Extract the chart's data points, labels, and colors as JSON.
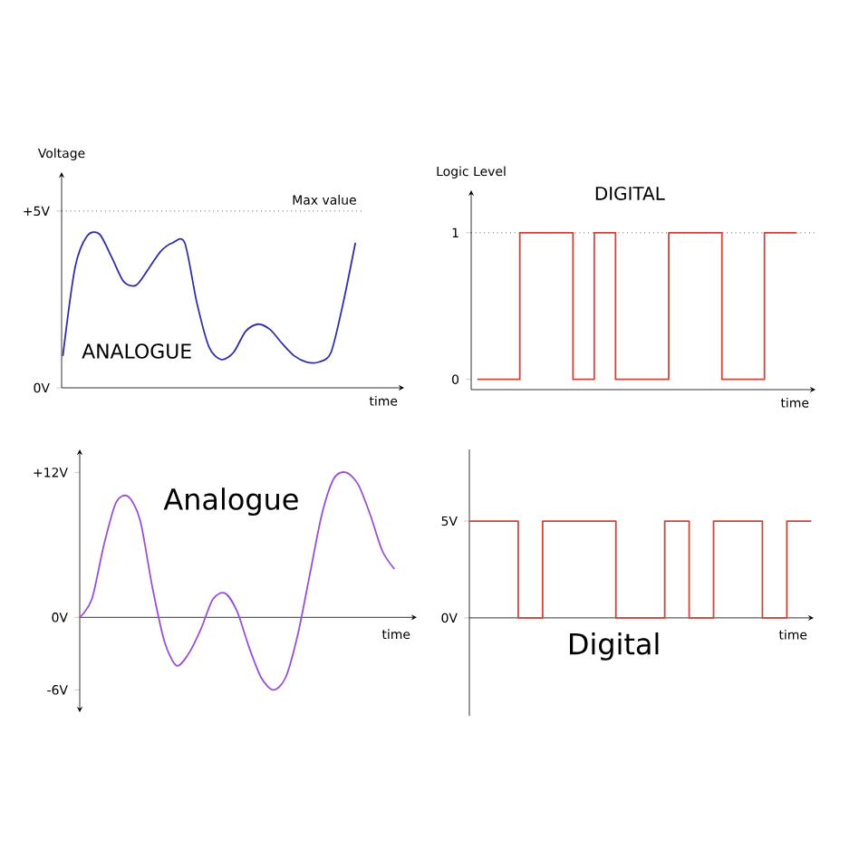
{
  "chart_data": [
    {
      "type": "line",
      "title": "ANALOGUE",
      "xlabel": "time",
      "ylabel": "Voltage",
      "color": "#2f2fa6",
      "tick_labels": "y",
      "categories": [
        null,
        null,
        null,
        null,
        null,
        null,
        null,
        null,
        null,
        null,
        null,
        null,
        null,
        null,
        null,
        null,
        null,
        null,
        null,
        null,
        null,
        null,
        null,
        null,
        null
      ],
      "values": [
        0.9,
        3.4,
        4.3,
        4.35,
        3.7,
        3.0,
        2.9,
        3.35,
        3.85,
        4.1,
        4.1,
        2.4,
        1.15,
        0.8,
        1.0,
        1.6,
        1.8,
        1.65,
        1.25,
        0.9,
        0.73,
        0.73,
        1.0,
        2.4,
        4.1
      ],
      "ylim": [
        0,
        6.1
      ],
      "yticks": [
        {
          "value": 0,
          "label": "0V"
        },
        {
          "value": 5,
          "label": "+5V"
        }
      ],
      "ref_lines": [
        {
          "axis": "y",
          "value": 5,
          "label": "Max value",
          "color": "#000000",
          "line_style": "dotted"
        }
      ]
    },
    {
      "type": "step",
      "title": "DIGITAL",
      "xlabel": "time",
      "ylabel": "Logic Level",
      "color": "#d0443a",
      "tick_labels": "y",
      "categories": [
        null,
        null,
        null,
        null,
        null,
        null,
        null,
        null,
        null,
        null,
        null,
        null,
        null,
        null,
        null,
        null,
        null,
        null,
        null,
        null,
        null,
        null,
        null,
        null,
        null,
        null,
        null,
        null,
        null,
        null,
        null
      ],
      "values": [
        0,
        0,
        0,
        0,
        1,
        1,
        1,
        1,
        1,
        0,
        0,
        1,
        1,
        0,
        0,
        0,
        0,
        0,
        1,
        1,
        1,
        1,
        1,
        0,
        0,
        0,
        0,
        1,
        1,
        1,
        1
      ],
      "ylim": [
        -0.07,
        1.29
      ],
      "yticks": [
        0,
        1
      ],
      "ref_lines": [
        {
          "axis": "y",
          "value": 1,
          "color": "#000000",
          "line_style": "dotted"
        }
      ]
    },
    {
      "type": "line",
      "title": "Analogue",
      "xlabel": "time",
      "color": "#9a4fd6",
      "tick_labels": "y",
      "categories": [
        null,
        null,
        null,
        null,
        null,
        null,
        null,
        null,
        null,
        null,
        null,
        null,
        null,
        null,
        null,
        null,
        null,
        null,
        null,
        null,
        null,
        null,
        null,
        null,
        null,
        null,
        null
      ],
      "values": [
        0,
        1.5,
        6,
        9.5,
        10,
        8,
        2.5,
        -2,
        -4,
        -3,
        -1,
        1.5,
        2,
        0.5,
        -2.5,
        -5,
        -6,
        -5,
        -1.5,
        3.5,
        8.5,
        11.5,
        12,
        11,
        8.5,
        5.5,
        4
      ],
      "ylim": [
        -7.85,
        13.9
      ],
      "yticks": [
        {
          "value": -6,
          "label": "-6V"
        },
        {
          "value": 0,
          "label": "0V"
        },
        {
          "value": 12,
          "label": "+12V"
        }
      ]
    },
    {
      "type": "step",
      "title": "Digital",
      "xlabel": "time",
      "color": "#d0443a",
      "tick_labels": "y",
      "categories": [
        null,
        null,
        null,
        null,
        null,
        null,
        null,
        null,
        null,
        null,
        null,
        null,
        null,
        null,
        null
      ],
      "values": [
        5,
        5,
        0,
        5,
        5,
        5,
        0,
        0,
        5,
        0,
        5,
        5,
        0,
        5,
        5
      ],
      "ylim": [
        -5.06,
        8.7
      ],
      "yticks": [
        {
          "value": 0,
          "label": "0V"
        },
        {
          "value": 5,
          "label": "5V"
        }
      ]
    }
  ]
}
